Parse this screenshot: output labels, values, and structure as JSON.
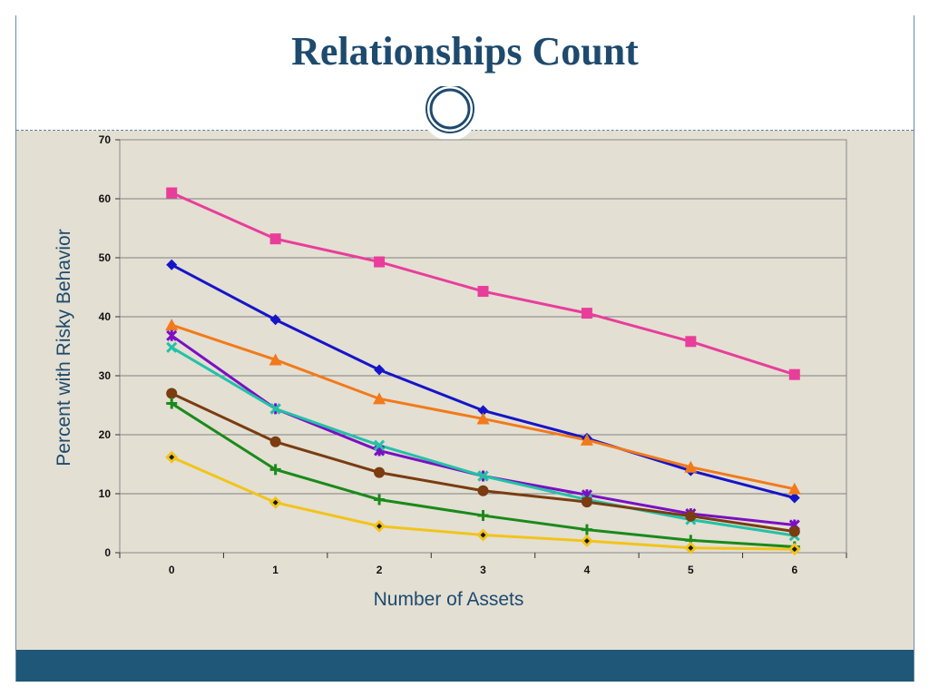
{
  "slide": {
    "title": "Relationships Count"
  },
  "colors": {
    "title": "#1e4a6e",
    "footer": "#1f5778",
    "background": "#e3dfd3"
  },
  "chart_data": {
    "type": "line",
    "title": "",
    "xlabel": "Number of Assets",
    "ylabel": "Percent  with  Risky Behavior",
    "x": [
      0,
      1,
      2,
      3,
      4,
      5,
      6
    ],
    "xlim": [
      0,
      6
    ],
    "ylim": [
      0,
      70
    ],
    "y_ticks": [
      0,
      10,
      20,
      30,
      40,
      50,
      60,
      70
    ],
    "grid": true,
    "legend": "none",
    "series": [
      {
        "color": "#e83e9a",
        "marker": "square",
        "values": [
          61,
          53.2,
          49.3,
          44.3,
          40.6,
          35.8,
          30.2
        ]
      },
      {
        "color": "#1515c8",
        "marker": "diamond",
        "values": [
          48.8,
          39.5,
          31.0,
          24.1,
          19.4,
          13.9,
          9.3
        ]
      },
      {
        "color": "#f27a1a",
        "marker": "triangle",
        "values": [
          38.6,
          32.7,
          26.1,
          22.7,
          19.1,
          14.5,
          10.8
        ]
      },
      {
        "color": "#7a0fc4",
        "marker": "star",
        "values": [
          36.8,
          24.4,
          17.3,
          13.0,
          9.8,
          6.6,
          4.7
        ]
      },
      {
        "color": "#23c2a6",
        "marker": "x",
        "values": [
          34.8,
          24.4,
          18.2,
          13.0,
          9.0,
          5.6,
          2.9
        ]
      },
      {
        "color": "#7a3c10",
        "marker": "circle",
        "values": [
          27.0,
          18.8,
          13.6,
          10.5,
          8.6,
          6.2,
          3.6
        ]
      },
      {
        "color": "#1a8a1a",
        "marker": "plus",
        "values": [
          25.3,
          14.1,
          9.0,
          6.3,
          3.9,
          2.1,
          1.0
        ]
      },
      {
        "color": "#f2c41a",
        "marker": "diamond-yellow",
        "values": [
          16.2,
          8.5,
          4.5,
          3.0,
          2.0,
          0.8,
          0.6
        ]
      }
    ]
  }
}
